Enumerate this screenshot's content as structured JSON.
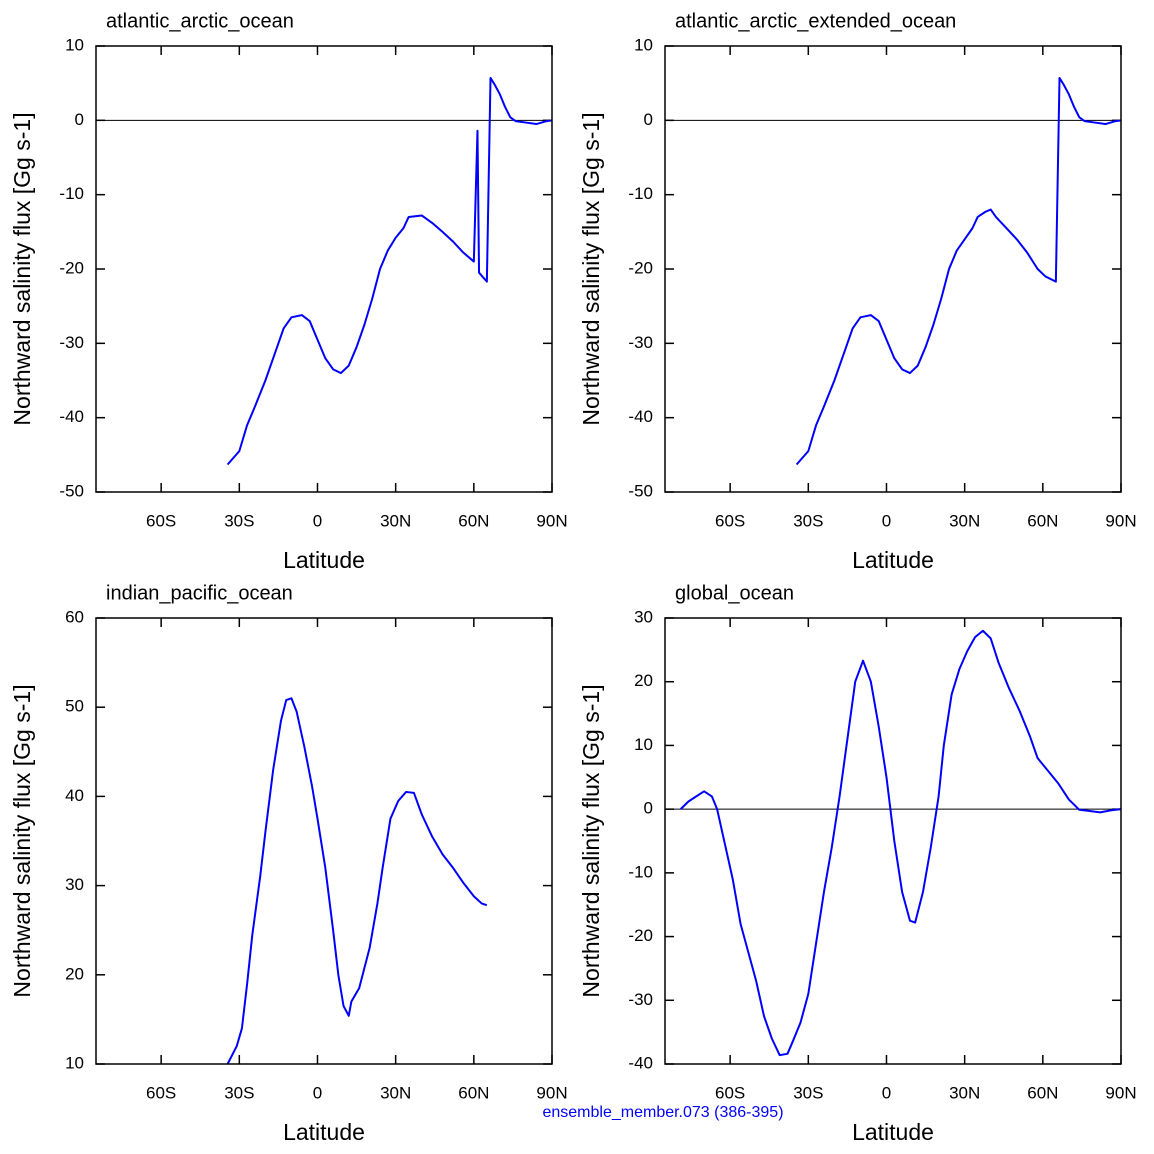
{
  "chart_data": [
    {
      "type": "line",
      "title": "atlantic_arctic_ocean",
      "xlabel": "Latitude",
      "ylabel": "Northward salinity flux [Gg s-1]",
      "color": "#0000ff",
      "xlim": [
        -85,
        90
      ],
      "xticks": [
        {
          "value": -60,
          "label": "60S"
        },
        {
          "value": -30,
          "label": "30S"
        },
        0,
        {
          "value": 30,
          "label": "30N"
        },
        {
          "value": 60,
          "label": "60N"
        },
        {
          "value": 90,
          "label": "90N"
        }
      ],
      "ylim": [
        -50,
        10
      ],
      "yticks": [
        -50,
        -40,
        -30,
        -20,
        -10,
        0,
        10
      ],
      "x": [
        -34.5,
        -30,
        -27,
        -24,
        -20,
        -16,
        -13,
        -10,
        -6,
        -3,
        0,
        3,
        6,
        9,
        12,
        15,
        18,
        21,
        24,
        27,
        30,
        33,
        35,
        40,
        44,
        48,
        52,
        56,
        60,
        61.4,
        62,
        65,
        66.4,
        68,
        70,
        72,
        74,
        76,
        80,
        84,
        88,
        90
      ],
      "values": [
        -46.3,
        -44.5,
        -41,
        -38.5,
        -35,
        -31,
        -28,
        -26.5,
        -26.2,
        -27,
        -29.5,
        -32,
        -33.5,
        -34,
        -33,
        -30.5,
        -27.5,
        -24,
        -20,
        -17.5,
        -15.8,
        -14.5,
        -13,
        -12.8,
        -13.8,
        -15,
        -16.3,
        -17.8,
        -19,
        -1.4,
        -20.5,
        -21.7,
        5.7,
        4.8,
        3.5,
        1.8,
        0.4,
        -0.1,
        -0.3,
        -0.5,
        -0.1,
        0
      ]
    },
    {
      "type": "line",
      "title": "atlantic_arctic_extended_ocean",
      "xlabel": "Latitude",
      "ylabel": "Northward salinity flux [Gg s-1]",
      "color": "#0000ff",
      "xlim": [
        -85,
        90
      ],
      "xticks": [
        {
          "value": -60,
          "label": "60S"
        },
        {
          "value": -30,
          "label": "30S"
        },
        0,
        {
          "value": 30,
          "label": "30N"
        },
        {
          "value": 60,
          "label": "60N"
        },
        {
          "value": 90,
          "label": "90N"
        }
      ],
      "ylim": [
        -50,
        10
      ],
      "yticks": [
        -50,
        -40,
        -30,
        -20,
        -10,
        0,
        10
      ],
      "x": [
        -34.5,
        -30,
        -27,
        -24,
        -20,
        -16,
        -13,
        -10,
        -6,
        -3,
        0,
        3,
        6,
        9,
        12,
        15,
        18,
        21,
        24,
        27,
        30,
        33,
        35,
        38,
        40,
        42,
        46,
        50,
        54,
        58,
        61,
        65,
        66.4,
        68,
        70,
        72,
        74,
        76,
        80,
        84,
        88,
        90
      ],
      "values": [
        -46.3,
        -44.5,
        -41,
        -38.5,
        -35,
        -31,
        -28,
        -26.5,
        -26.2,
        -27,
        -29.5,
        -32,
        -33.5,
        -34,
        -33,
        -30.5,
        -27.5,
        -24,
        -20,
        -17.5,
        -16,
        -14.5,
        -13,
        -12.3,
        -12,
        -13,
        -14.5,
        -16,
        -17.8,
        -20,
        -21,
        -21.7,
        5.7,
        4.8,
        3.5,
        1.8,
        0.4,
        -0.1,
        -0.3,
        -0.5,
        -0.1,
        0
      ]
    },
    {
      "type": "line",
      "title": "indian_pacific_ocean",
      "xlabel": "Latitude",
      "ylabel": "Northward salinity flux [Gg s-1]",
      "color": "#0000ff",
      "xlim": [
        -85,
        90
      ],
      "xticks": [
        {
          "value": -60,
          "label": "60S"
        },
        {
          "value": -30,
          "label": "30S"
        },
        0,
        {
          "value": 30,
          "label": "30N"
        },
        {
          "value": 60,
          "label": "60N"
        },
        {
          "value": 90,
          "label": "90N"
        }
      ],
      "ylim": [
        10,
        60
      ],
      "yticks": [
        10,
        20,
        30,
        40,
        50,
        60
      ],
      "x": [
        -34.5,
        -31,
        -29,
        -27,
        -25,
        -22,
        -20,
        -17,
        -14,
        -12,
        -10,
        -8,
        -5,
        -2,
        0,
        3,
        6,
        8,
        10,
        12,
        13,
        16,
        20,
        23,
        25,
        28,
        31,
        34,
        37,
        40,
        44,
        48,
        52,
        56,
        60,
        63,
        65
      ],
      "values": [
        10,
        12,
        14,
        19,
        24.5,
        31,
        36,
        43,
        48.5,
        50.8,
        51,
        49.5,
        45.5,
        41,
        37.5,
        32,
        25,
        20,
        16.5,
        15.4,
        17,
        18.5,
        23,
        28,
        32,
        37.5,
        39.5,
        40.5,
        40.4,
        38,
        35.5,
        33.5,
        32,
        30.3,
        28.8,
        28,
        27.8
      ]
    },
    {
      "type": "line",
      "title": "global_ocean",
      "xlabel": "Latitude",
      "ylabel": "Northward salinity flux [Gg s-1]",
      "color": "#0000ff",
      "xlim": [
        -85,
        90
      ],
      "xticks": [
        {
          "value": -60,
          "label": "60S"
        },
        {
          "value": -30,
          "label": "30S"
        },
        0,
        {
          "value": 30,
          "label": "30N"
        },
        {
          "value": 60,
          "label": "60N"
        },
        {
          "value": 90,
          "label": "90N"
        }
      ],
      "ylim": [
        -40,
        30
      ],
      "yticks": [
        -40,
        -30,
        -20,
        -10,
        0,
        10,
        20,
        30
      ],
      "x": [
        -79,
        -76,
        -73,
        -70,
        -67,
        -65,
        -62,
        -59,
        -56,
        -53,
        -50,
        -47,
        -44,
        -41,
        -38,
        -36,
        -33,
        -30,
        -27,
        -24,
        -21,
        -18,
        -15,
        -12,
        -9,
        -6,
        -3,
        0,
        3,
        6,
        9,
        11,
        14,
        17,
        20,
        22,
        25,
        28,
        31,
        34,
        37,
        40,
        43,
        47,
        51,
        55,
        58,
        62,
        66,
        70,
        74,
        78,
        82,
        86,
        90
      ],
      "values": [
        0,
        1.2,
        2,
        2.8,
        2,
        0,
        -5.5,
        -11,
        -18,
        -22.5,
        -27,
        -32.5,
        -36,
        -38.6,
        -38.4,
        -36.5,
        -33.5,
        -29,
        -21,
        -13,
        -6,
        2,
        11,
        20,
        23.3,
        20,
        13,
        5,
        -5,
        -13,
        -17.5,
        -17.8,
        -13,
        -6,
        2,
        10,
        18,
        22,
        24.8,
        27,
        28,
        26.8,
        23,
        19,
        15.5,
        11.5,
        8,
        6,
        4,
        1.5,
        -0.1,
        -0.3,
        -0.5,
        -0.2,
        0
      ]
    }
  ],
  "footer": "ensemble_member.073 (386-395)"
}
